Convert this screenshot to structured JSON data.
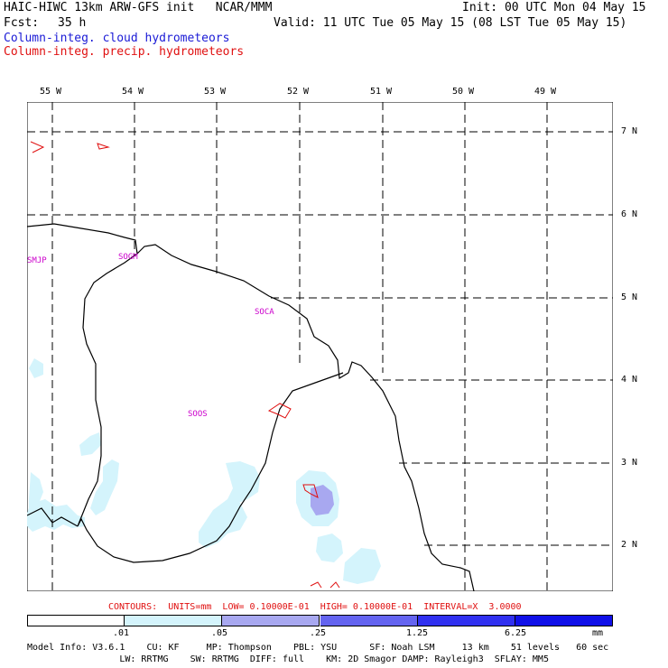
{
  "header": {
    "title": "HAIC-HIWC 13km ARW-GFS init   NCAR/MMM",
    "init": "Init: 00 UTC Mon 04 May 15",
    "fcst_label": "Fcst:",
    "fcst_value": "35 h",
    "valid": "Valid: 11 UTC Tue 05 May 15 (08 LST Tue 05 May 15)",
    "field_cloud": "Column-integ. cloud hydrometeors",
    "field_precip": "Column-integ. precip. hydrometeors"
  },
  "map": {
    "lon_labels": [
      "55 W",
      "54 W",
      "53 W",
      "52 W",
      "51 W",
      "50 W",
      "49 W"
    ],
    "lat_labels": [
      "7 N",
      "6 N",
      "5 N",
      "4 N",
      "3 N",
      "2 N"
    ],
    "stations": [
      "SMJP",
      "SOGM",
      "SOCA",
      "SOOS"
    ],
    "colors": {
      "cloud_light": "#d4f4fc",
      "cloud_mid": "#a8a8f0",
      "precip_contour": "#e01010",
      "coast": "#000000",
      "station_label": "#cc00cc"
    }
  },
  "contours_line": "CONTOURS:  UNITS=mm  LOW= 0.10000E-01  HIGH= 0.10000E-01  INTERVAL=X  3.0000",
  "colorbar": {
    "ticks": [
      ".01",
      ".05",
      ".25",
      "1.25",
      "6.25"
    ],
    "units": "mm",
    "colors": [
      "#ffffff",
      "#d4f4fc",
      "#a8a8f0",
      "#6464f0",
      "#3030f0",
      "#1010e8"
    ]
  },
  "footer": {
    "line1": "Model Info: V3.6.1    CU: KF     MP: Thompson    PBL: YSU      SF: Noah LSM     13 km    51 levels   60 sec",
    "line2": "                 LW: RRTMG    SW: RRTMG  DIFF: full    KM: 2D Smagor DAMP: Rayleigh3  SFLAY: MM5"
  }
}
